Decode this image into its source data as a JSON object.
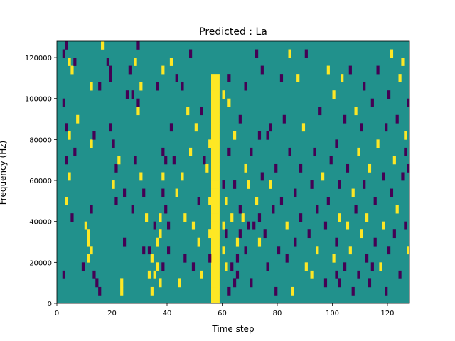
{
  "chart_data": {
    "type": "heatmap",
    "title": "Predicted : La",
    "xlabel": "Time step",
    "ylabel": "Frequency (Hz)",
    "xlim": [
      0,
      128
    ],
    "ylim": [
      0,
      128000
    ],
    "xticks": [
      0,
      20,
      40,
      60,
      80,
      100,
      120
    ],
    "yticks": [
      0,
      20000,
      40000,
      60000,
      80000,
      100000,
      120000
    ],
    "xtick_labels": [
      "0",
      "20",
      "40",
      "60",
      "80",
      "100",
      "120"
    ],
    "ytick_labels": [
      "0",
      "20000",
      "40000",
      "60000",
      "80000",
      "100000",
      "120000"
    ],
    "colormap": "viridis",
    "levels": [
      -1,
      0,
      1
    ],
    "colors": {
      "-1": "#440154",
      "0": "#21918c",
      "1": "#fde725"
    },
    "background_level": 0,
    "cell_height_hz": 4000,
    "yellow_band": {
      "x_start": 56,
      "x_end": 59,
      "y_start": 0,
      "y_end": 112000
    },
    "sparse_cells": [
      [
        2,
        120000,
        -1
      ],
      [
        3,
        124000,
        -1
      ],
      [
        4,
        116000,
        1
      ],
      [
        5,
        112000,
        1
      ],
      [
        6,
        116000,
        -1
      ],
      [
        2,
        96000,
        -1
      ],
      [
        3,
        84000,
        -1
      ],
      [
        4,
        80000,
        1
      ],
      [
        6,
        72000,
        -1
      ],
      [
        7,
        88000,
        1
      ],
      [
        3,
        68000,
        -1
      ],
      [
        4,
        60000,
        1
      ],
      [
        3,
        48000,
        1
      ],
      [
        5,
        40000,
        -1
      ],
      [
        2,
        12000,
        -1
      ],
      [
        9,
        16000,
        -1
      ],
      [
        10,
        36000,
        1
      ],
      [
        11,
        32000,
        1
      ],
      [
        11,
        28000,
        1
      ],
      [
        12,
        24000,
        1
      ],
      [
        11,
        20000,
        1
      ],
      [
        13,
        12000,
        -1
      ],
      [
        14,
        8000,
        -1
      ],
      [
        15,
        4000,
        -1
      ],
      [
        12,
        44000,
        -1
      ],
      [
        12,
        76000,
        1
      ],
      [
        13,
        80000,
        -1
      ],
      [
        12,
        104000,
        1
      ],
      [
        15,
        104000,
        -1
      ],
      [
        16,
        124000,
        1
      ],
      [
        18,
        116000,
        -1
      ],
      [
        19,
        112000,
        -1
      ],
      [
        19,
        108000,
        -1
      ],
      [
        19,
        84000,
        -1
      ],
      [
        21,
        48000,
        -1
      ],
      [
        20,
        56000,
        1
      ],
      [
        20,
        76000,
        -1
      ],
      [
        21,
        64000,
        -1
      ],
      [
        22,
        68000,
        1
      ],
      [
        24,
        52000,
        -1
      ],
      [
        24,
        28000,
        -1
      ],
      [
        23,
        8000,
        1
      ],
      [
        23,
        4000,
        1
      ],
      [
        25,
        100000,
        -1
      ],
      [
        26,
        112000,
        -1
      ],
      [
        27,
        100000,
        -1
      ],
      [
        28,
        116000,
        1
      ],
      [
        29,
        124000,
        -1
      ],
      [
        27,
        44000,
        -1
      ],
      [
        28,
        68000,
        -1
      ],
      [
        29,
        96000,
        -1
      ],
      [
        29,
        92000,
        1
      ],
      [
        30,
        104000,
        1
      ],
      [
        30,
        60000,
        1
      ],
      [
        31,
        52000,
        -1
      ],
      [
        31,
        24000,
        -1
      ],
      [
        32,
        40000,
        1
      ],
      [
        33,
        12000,
        1
      ],
      [
        34,
        20000,
        1
      ],
      [
        35,
        36000,
        -1
      ],
      [
        35,
        12000,
        1
      ],
      [
        36,
        104000,
        -1
      ],
      [
        36,
        28000,
        1
      ],
      [
        37,
        8000,
        1
      ],
      [
        37,
        32000,
        1
      ],
      [
        38,
        112000,
        1
      ],
      [
        38,
        72000,
        -1
      ],
      [
        38,
        60000,
        1
      ],
      [
        38,
        52000,
        -1
      ],
      [
        38,
        16000,
        -1
      ],
      [
        39,
        68000,
        -1
      ],
      [
        39,
        44000,
        -1
      ],
      [
        40,
        36000,
        -1
      ],
      [
        40,
        24000,
        -1
      ],
      [
        41,
        116000,
        1
      ],
      [
        41,
        84000,
        -1
      ],
      [
        42,
        68000,
        -1
      ],
      [
        43,
        108000,
        -1
      ],
      [
        43,
        52000,
        1
      ],
      [
        44,
        8000,
        1
      ],
      [
        45,
        104000,
        -1
      ],
      [
        45,
        60000,
        1
      ],
      [
        46,
        20000,
        -1
      ],
      [
        46,
        40000,
        1
      ],
      [
        47,
        92000,
        1
      ],
      [
        48,
        72000,
        1
      ],
      [
        48,
        120000,
        -1
      ],
      [
        49,
        36000,
        1
      ],
      [
        49,
        16000,
        -1
      ],
      [
        50,
        84000,
        1
      ],
      [
        51,
        48000,
        -1
      ],
      [
        51,
        28000,
        1
      ],
      [
        52,
        92000,
        -1
      ],
      [
        52,
        12000,
        1
      ],
      [
        53,
        68000,
        -1
      ],
      [
        54,
        64000,
        1
      ],
      [
        55,
        32000,
        1
      ],
      [
        55,
        48000,
        1
      ],
      [
        55,
        20000,
        -1
      ],
      [
        55,
        76000,
        1
      ],
      [
        60,
        56000,
        -1
      ],
      [
        60,
        24000,
        1
      ],
      [
        61,
        48000,
        1
      ],
      [
        61,
        32000,
        -1
      ],
      [
        62,
        108000,
        -1
      ],
      [
        62,
        96000,
        1
      ],
      [
        62,
        72000,
        -1
      ],
      [
        63,
        40000,
        1
      ],
      [
        63,
        16000,
        -1
      ],
      [
        64,
        56000,
        -1
      ],
      [
        64,
        80000,
        1
      ],
      [
        65,
        28000,
        1
      ],
      [
        65,
        12000,
        -1
      ],
      [
        66,
        88000,
        -1
      ],
      [
        67,
        40000,
        1
      ],
      [
        68,
        64000,
        1
      ],
      [
        68,
        104000,
        -1
      ],
      [
        68,
        24000,
        -1
      ],
      [
        69,
        56000,
        1
      ],
      [
        70,
        8000,
        -1
      ],
      [
        70,
        72000,
        -1
      ],
      [
        71,
        36000,
        -1
      ],
      [
        72,
        48000,
        1
      ],
      [
        72,
        120000,
        -1
      ],
      [
        73,
        80000,
        -1
      ],
      [
        73,
        28000,
        1
      ],
      [
        74,
        112000,
        -1
      ],
      [
        74,
        60000,
        -1
      ],
      [
        75,
        32000,
        -1
      ],
      [
        76,
        16000,
        -1
      ],
      [
        77,
        56000,
        1
      ],
      [
        77,
        84000,
        -1
      ],
      [
        78,
        44000,
        -1
      ],
      [
        79,
        64000,
        -1
      ],
      [
        79,
        4000,
        -1
      ],
      [
        80,
        24000,
        -1
      ],
      [
        81,
        108000,
        -1
      ],
      [
        81,
        48000,
        -1
      ],
      [
        82,
        88000,
        -1
      ],
      [
        83,
        20000,
        -1
      ],
      [
        83,
        36000,
        1
      ],
      [
        84,
        120000,
        1
      ],
      [
        84,
        72000,
        -1
      ],
      [
        85,
        4000,
        1
      ],
      [
        86,
        52000,
        -1
      ],
      [
        86,
        28000,
        -1
      ],
      [
        87,
        108000,
        1
      ],
      [
        88,
        40000,
        -1
      ],
      [
        88,
        64000,
        -1
      ],
      [
        89,
        84000,
        1
      ],
      [
        90,
        16000,
        1
      ],
      [
        90,
        120000,
        -1
      ],
      [
        91,
        32000,
        -1
      ],
      [
        92,
        56000,
        -1
      ],
      [
        92,
        12000,
        1
      ],
      [
        93,
        72000,
        -1
      ],
      [
        94,
        44000,
        -1
      ],
      [
        94,
        24000,
        1
      ],
      [
        95,
        92000,
        -1
      ],
      [
        96,
        60000,
        1
      ],
      [
        97,
        36000,
        -1
      ],
      [
        97,
        8000,
        -1
      ],
      [
        98,
        112000,
        1
      ],
      [
        98,
        48000,
        -1
      ],
      [
        99,
        68000,
        -1
      ],
      [
        100,
        20000,
        1
      ],
      [
        100,
        100000,
        1
      ],
      [
        101,
        28000,
        -1
      ],
      [
        101,
        76000,
        -1
      ],
      [
        102,
        56000,
        -1
      ],
      [
        102,
        40000,
        1
      ],
      [
        103,
        108000,
        1
      ],
      [
        104,
        88000,
        -1
      ],
      [
        104,
        16000,
        -1
      ],
      [
        105,
        36000,
        1
      ],
      [
        105,
        64000,
        -1
      ],
      [
        106,
        112000,
        -1
      ],
      [
        106,
        24000,
        1
      ],
      [
        107,
        52000,
        1
      ],
      [
        107,
        4000,
        -1
      ],
      [
        108,
        92000,
        1
      ],
      [
        108,
        44000,
        -1
      ],
      [
        109,
        72000,
        1
      ],
      [
        109,
        12000,
        -1
      ],
      [
        110,
        32000,
        1
      ],
      [
        110,
        84000,
        -1
      ],
      [
        111,
        104000,
        -1
      ],
      [
        111,
        56000,
        -1
      ],
      [
        112,
        20000,
        -1
      ],
      [
        112,
        40000,
        1
      ],
      [
        113,
        64000,
        1
      ],
      [
        113,
        8000,
        -1
      ],
      [
        114,
        96000,
        -1
      ],
      [
        115,
        28000,
        -1
      ],
      [
        115,
        48000,
        -1
      ],
      [
        116,
        76000,
        1
      ],
      [
        116,
        112000,
        -1
      ],
      [
        117,
        16000,
        1
      ],
      [
        118,
        60000,
        -1
      ],
      [
        118,
        36000,
        1
      ],
      [
        119,
        84000,
        -1
      ],
      [
        119,
        4000,
        -1
      ],
      [
        120,
        100000,
        -1
      ],
      [
        120,
        24000,
        -1
      ],
      [
        121,
        52000,
        -1
      ],
      [
        121,
        120000,
        1
      ],
      [
        122,
        68000,
        1
      ],
      [
        122,
        32000,
        -1
      ],
      [
        123,
        44000,
        1
      ],
      [
        123,
        88000,
        -1
      ],
      [
        124,
        108000,
        1
      ],
      [
        124,
        12000,
        -1
      ],
      [
        125,
        60000,
        -1
      ],
      [
        125,
        116000,
        1
      ],
      [
        126,
        36000,
        -1
      ],
      [
        126,
        72000,
        -1
      ],
      [
        126,
        80000,
        1
      ],
      [
        127,
        96000,
        -1
      ],
      [
        127,
        64000,
        -1
      ],
      [
        127,
        24000,
        1
      ],
      [
        114,
        16000,
        -1
      ],
      [
        101,
        12000,
        -1
      ],
      [
        102,
        8000,
        -1
      ],
      [
        76,
        80000,
        -1
      ],
      [
        73,
        40000,
        -1
      ],
      [
        69,
        36000,
        -1
      ],
      [
        66,
        44000,
        -1
      ],
      [
        66,
        32000,
        -1
      ],
      [
        65,
        20000,
        -1
      ],
      [
        64,
        8000,
        -1
      ],
      [
        62,
        4000,
        -1
      ],
      [
        61,
        16000,
        1
      ],
      [
        60,
        36000,
        1
      ],
      [
        60,
        100000,
        1
      ],
      [
        33,
        24000,
        -1
      ],
      [
        34,
        4000,
        1
      ],
      [
        36,
        16000,
        1
      ],
      [
        37,
        40000,
        1
      ]
    ]
  }
}
